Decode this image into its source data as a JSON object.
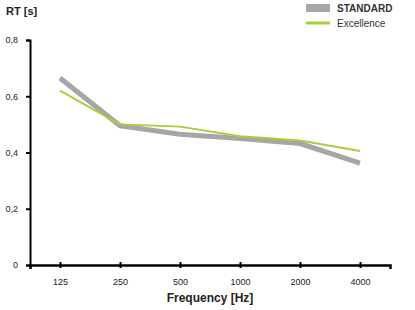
{
  "chart_data": {
    "type": "line",
    "y_label": "RT [s]",
    "x_label": "Frequency [Hz]",
    "categories": [
      "125",
      "250",
      "500",
      "1000",
      "2000",
      "4000"
    ],
    "series": [
      {
        "name": "STANDARD",
        "color": "#a6a6a6",
        "line_style": "solid",
        "values": [
          0.665,
          0.495,
          0.465,
          0.45,
          0.432,
          0.362
        ]
      },
      {
        "name": "Excellence",
        "color": "#a5cf3c",
        "line_style": "solid",
        "values": [
          0.62,
          0.5,
          0.492,
          0.458,
          0.443,
          0.405
        ]
      }
    ],
    "ylim": [
      0,
      0.8
    ],
    "yticks": [
      0,
      {
        "value": 0.2,
        "label": "0,2"
      },
      {
        "value": 0.4,
        "label": "0,4"
      },
      {
        "value": 0.6,
        "label": "0,6"
      },
      {
        "value": 0.8,
        "label": "0,8"
      }
    ],
    "legend": "top-right",
    "grid": false
  }
}
